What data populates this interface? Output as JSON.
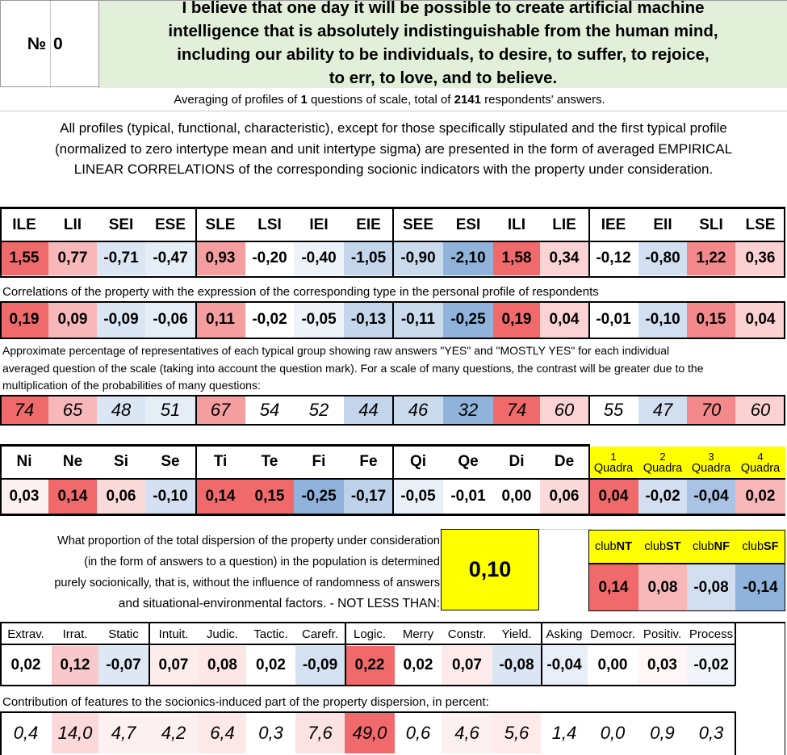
{
  "header": {
    "number_sign": "№",
    "number": "0",
    "statement_lines": [
      "I believe that one day it will be possible to create artificial machine",
      "intelligence that is absolutely indistinguishable from the human mind,",
      "including our ability to be individuals, to desire, to suffer, to rejoice,",
      "to err, to love, and to believe."
    ]
  },
  "averaging": {
    "prefix": "Averaging of profiles of ",
    "questions": "1",
    "middle": " questions of scale, total of ",
    "respondents": "2141",
    "suffix": " respondents' answers."
  },
  "intro_lines": [
    "All profiles (typical, functional, characteristic), except for those specifically stipulated and the first typical profile",
    "(normalized to zero intertype mean and unit intertype sigma) are presented in the form of averaged EMPIRICAL",
    "LINEAR CORRELATIONS of the corresponding socionic indicators with the property under consideration."
  ],
  "types": {
    "headers": [
      "ILE",
      "LII",
      "SEI",
      "ESE",
      "SLE",
      "LSI",
      "IEI",
      "EIE",
      "SEE",
      "ESI",
      "ILI",
      "LIE",
      "IEE",
      "EII",
      "SLI",
      "LSE"
    ],
    "values": [
      "1,55",
      "0,77",
      "-0,71",
      "-0,47",
      "0,93",
      "-0,20",
      "-0,40",
      "-1,05",
      "-0,90",
      "-2,10",
      "1,58",
      "0,34",
      "-0,12",
      "-0,80",
      "1,22",
      "0,36"
    ],
    "value_colors": [
      "#f06a6c",
      "#f8b8b9",
      "#dae6f3",
      "#e5edf7",
      "#f59ea0",
      "#ffffff",
      "#eef2f9",
      "#c3d6ec",
      "#cbdbee",
      "#90b3dc",
      "#f06a6c",
      "#fbd3d4",
      "#ffffff",
      "#d1dff0",
      "#f3898b",
      "#fbd1d2"
    ],
    "correlation_caption": "Correlations of the property with the expression of the corresponding type in the personal profile of respondents",
    "correlations": [
      "0,19",
      "0,09",
      "-0,09",
      "-0,06",
      "0,11",
      "-0,02",
      "-0,05",
      "-0,13",
      "-0,11",
      "-0,25",
      "0,19",
      "0,04",
      "-0,01",
      "-0,10",
      "0,15",
      "0,04"
    ],
    "correlation_colors": [
      "#f06a6c",
      "#f8b8b9",
      "#dae6f3",
      "#e5edf7",
      "#f59ea0",
      "#ffffff",
      "#eef2f9",
      "#c3d6ec",
      "#cbdbee",
      "#90b3dc",
      "#f06a6c",
      "#fbd3d4",
      "#ffffff",
      "#d1dff0",
      "#f3898b",
      "#fbd1d2"
    ],
    "percentage_caption_lines": [
      "Approximate percentage of representatives of each typical group showing raw answers \"YES\" and \"MOSTLY YES\" for each individual",
      "averaged question of the scale (taking into account the question mark). For a scale of many questions, the contrast will be greater due to the",
      "multiplication of the probabilities of many questions:"
    ],
    "percentages": [
      "74",
      "65",
      "48",
      "51",
      "67",
      "54",
      "52",
      "44",
      "46",
      "32",
      "74",
      "60",
      "55",
      "47",
      "70",
      "60"
    ],
    "percentage_colors": [
      "#f06a6c",
      "#f8b8b9",
      "#dae6f3",
      "#e5edf7",
      "#f59ea0",
      "#ffffff",
      "#ffffff",
      "#c3d6ec",
      "#cbdbee",
      "#90b3dc",
      "#f06a6c",
      "#fbd3d4",
      "#ffffff",
      "#d1dff0",
      "#f3898b",
      "#fbd1d2"
    ]
  },
  "functions": {
    "headers": [
      "Ni",
      "Ne",
      "Si",
      "Se",
      "Ti",
      "Te",
      "Fi",
      "Fe",
      "Qi",
      "Qe",
      "Di",
      "De"
    ],
    "values": [
      "0,03",
      "0,14",
      "0,06",
      "-0,10",
      "0,14",
      "0,15",
      "-0,25",
      "-0,17",
      "-0,05",
      "-0,01",
      "0,00",
      "0,06"
    ],
    "colors": [
      "#fdf0f0",
      "#f06a6c",
      "#fbdada",
      "#d3e0f1",
      "#f06a6c",
      "#f06a6c",
      "#90b3dc",
      "#bdd1ea",
      "#eaf0f8",
      "#ffffff",
      "#ffffff",
      "#fbdada"
    ]
  },
  "quadras": {
    "numbers": [
      "1",
      "2",
      "3",
      "4"
    ],
    "label": "Quadra",
    "values": [
      "0,04",
      "-0,02",
      "-0,04",
      "0,02"
    ],
    "colors": [
      "#f06a6c",
      "#d1dff0",
      "#a9c3e4",
      "#f8b8b9"
    ],
    "header_color": "#ffff00"
  },
  "dispersion": {
    "lines": [
      "What proportion of the total dispersion of the property under consideration",
      "(in the form of answers to a question) in the population is determined",
      "purely socionically, that is, without the influence of randomness of answers",
      "and situational-environmental factors. - NOT LESS THAN:"
    ],
    "value": "0,10",
    "highlight_color": "#ffff00"
  },
  "clubs": {
    "prefix": "club",
    "names": [
      "NT",
      "ST",
      "NF",
      "SF"
    ],
    "values": [
      "0,14",
      "0,08",
      "-0,08",
      "-0,14"
    ],
    "colors": [
      "#f06a6c",
      "#f8b8b9",
      "#d1dff0",
      "#90b3dc"
    ],
    "header_color": "#ffff00"
  },
  "features": {
    "headers": [
      "Extrav.",
      "Irrat.",
      "Static",
      "Intuit.",
      "Judic.",
      "Tactic.",
      "Carefr.",
      "Logic.",
      "Merry",
      "Constr.",
      "Yield.",
      "Asking",
      "Democr.",
      "Positiv.",
      "Process"
    ],
    "values": [
      "0,02",
      "0,12",
      "-0,07",
      "0,07",
      "0,08",
      "0,02",
      "-0,09",
      "0,22",
      "0,02",
      "0,07",
      "-0,08",
      "-0,04",
      "0,00",
      "0,03",
      "-0,02"
    ],
    "colors": [
      "#ffffff",
      "#f8c9ca",
      "#dde8f4",
      "#fdecec",
      "#fde6e6",
      "#ffffff",
      "#d4e1f1",
      "#f06a6c",
      "#ffffff",
      "#fdeaea",
      "#dae6f3",
      "#e8eff8",
      "#ffffff",
      "#fff7f7",
      "#f1f5fa"
    ],
    "contribution_caption": "Contribution of features to the socionics-induced part of the property dispersion, in percent:",
    "contributions": [
      "0,4",
      "14,0",
      "4,7",
      "4,2",
      "6,4",
      "0,3",
      "7,6",
      "49,0",
      "0,6",
      "4,6",
      "5,6",
      "1,4",
      "0,0",
      "0,9",
      "0,3"
    ],
    "contribution_colors": [
      "#ffffff",
      "#fbd8d9",
      "#fdf0f0",
      "#fdf0f0",
      "#fde8e8",
      "#ffffff",
      "#fce3e3",
      "#f06a6c",
      "#ffffff",
      "#fdf0f0",
      "#fdeaea",
      "#ffffff",
      "#ffffff",
      "#ffffff",
      "#ffffff"
    ]
  },
  "colors": {
    "title_bg": "#e2efd9",
    "grid": "#000000",
    "light_grid": "#d0d0d0"
  }
}
